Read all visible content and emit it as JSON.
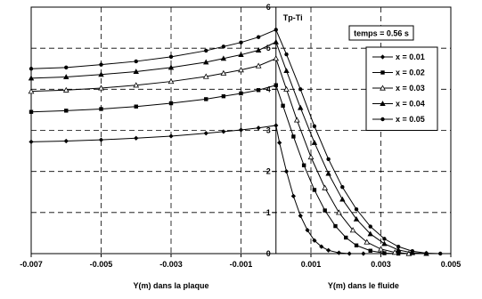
{
  "chart_data": {
    "type": "line",
    "x_axis": {
      "min": -0.007,
      "max": 0.005,
      "ticks": [
        -0.007,
        -0.005,
        -0.003,
        -0.001,
        0.001,
        0.003,
        0.005
      ],
      "tick_labels": [
        "-0.007",
        "-0.005",
        "-0.003",
        "-0.001",
        "0.001",
        "0.003",
        "0.005"
      ],
      "label_left": "Y(m) dans la plaque",
      "label_right": "Y(m) dans le fluide"
    },
    "y_axis": {
      "min": 0,
      "max": 6,
      "ticks": [
        0,
        1,
        2,
        3,
        4,
        5,
        6
      ],
      "tick_labels": [
        "0",
        "1",
        "2",
        "3",
        "4",
        "5",
        "6"
      ],
      "label": "Tp-Ti"
    },
    "grid": "dashed",
    "legend": {
      "position": "right",
      "title": "temps = 0.56 s"
    },
    "series": [
      {
        "name": "x = 0.01",
        "marker": "diamond",
        "x": [
          -0.007,
          -0.006,
          -0.005,
          -0.004,
          -0.003,
          -0.002,
          -0.0015,
          -0.001,
          -0.0005,
          0.0,
          0.0001,
          0.0003,
          0.0005,
          0.0007,
          0.0009,
          0.0011,
          0.0013,
          0.0015,
          0.0018,
          0.0021,
          0.0025
        ],
        "y": [
          2.72,
          2.74,
          2.77,
          2.81,
          2.86,
          2.93,
          2.97,
          3.01,
          3.06,
          3.12,
          2.7,
          2.0,
          1.4,
          0.92,
          0.57,
          0.32,
          0.17,
          0.08,
          0.02,
          0.0,
          0.0
        ]
      },
      {
        "name": "x = 0.02",
        "marker": "square",
        "x": [
          -0.007,
          -0.006,
          -0.005,
          -0.004,
          -0.003,
          -0.002,
          -0.0015,
          -0.001,
          -0.0005,
          0.0,
          0.0002,
          0.0005,
          0.0008,
          0.0011,
          0.0014,
          0.0017,
          0.002,
          0.0023,
          0.0027,
          0.0031,
          0.0035
        ],
        "y": [
          3.45,
          3.48,
          3.52,
          3.58,
          3.66,
          3.76,
          3.83,
          3.9,
          3.98,
          4.1,
          3.6,
          2.85,
          2.15,
          1.55,
          1.05,
          0.67,
          0.39,
          0.2,
          0.07,
          0.01,
          0.0
        ]
      },
      {
        "name": "x = 0.03",
        "marker": "triangle",
        "x": [
          -0.007,
          -0.006,
          -0.005,
          -0.004,
          -0.003,
          -0.002,
          -0.0015,
          -0.001,
          -0.0005,
          0.0,
          0.0003,
          0.0006,
          0.001,
          0.0014,
          0.0018,
          0.0022,
          0.0026,
          0.003,
          0.0034,
          0.0038
        ],
        "y": [
          3.95,
          3.98,
          4.03,
          4.1,
          4.19,
          4.31,
          4.39,
          4.47,
          4.57,
          4.75,
          4.0,
          3.25,
          2.35,
          1.6,
          1.0,
          0.57,
          0.28,
          0.11,
          0.03,
          0.0
        ]
      },
      {
        "name": "x = 0.04",
        "marker": "triangle-filled",
        "x": [
          -0.007,
          -0.006,
          -0.005,
          -0.004,
          -0.003,
          -0.002,
          -0.0015,
          -0.001,
          -0.0005,
          0.0,
          0.0003,
          0.0007,
          0.0011,
          0.0015,
          0.0019,
          0.0023,
          0.0027,
          0.0031,
          0.0035,
          0.0039,
          0.0043
        ],
        "y": [
          4.27,
          4.3,
          4.36,
          4.43,
          4.53,
          4.66,
          4.75,
          4.84,
          4.95,
          5.15,
          4.45,
          3.55,
          2.7,
          1.95,
          1.32,
          0.84,
          0.48,
          0.24,
          0.09,
          0.02,
          0.0
        ]
      },
      {
        "name": "x = 0.05",
        "marker": "circle",
        "x": [
          -0.007,
          -0.006,
          -0.005,
          -0.004,
          -0.003,
          -0.002,
          -0.0015,
          -0.001,
          -0.0005,
          0.0,
          0.0003,
          0.0007,
          0.0011,
          0.0015,
          0.0019,
          0.0023,
          0.0027,
          0.0031,
          0.0035,
          0.0039,
          0.0043,
          0.0047
        ],
        "y": [
          4.5,
          4.53,
          4.6,
          4.68,
          4.79,
          4.94,
          5.04,
          5.14,
          5.27,
          5.45,
          4.85,
          4.0,
          3.1,
          2.3,
          1.62,
          1.08,
          0.66,
          0.36,
          0.17,
          0.06,
          0.01,
          0.0
        ]
      }
    ]
  }
}
